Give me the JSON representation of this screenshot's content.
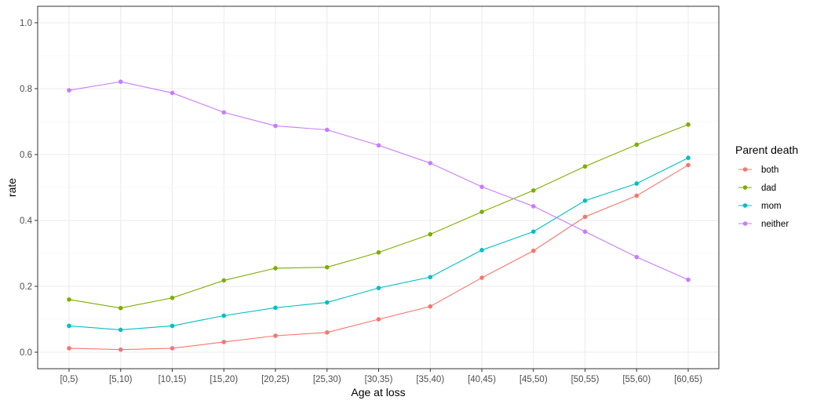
{
  "chart_data": {
    "type": "line",
    "title": "",
    "xlabel": "Age at loss",
    "ylabel": "rate",
    "ylim": [
      0,
      1.0
    ],
    "yticks": [
      0.0,
      0.2,
      0.4,
      0.6,
      0.8,
      1.0
    ],
    "ytick_labels": [
      "0.0",
      "0.2",
      "0.4",
      "0.6",
      "0.8",
      "1.0"
    ],
    "grid": true,
    "legend_title": "Parent death",
    "legend_position": "right",
    "categories": [
      "[0,5)",
      "[5,10)",
      "[10,15)",
      "[15,20)",
      "[20,25)",
      "[25,30)",
      "[30,35)",
      "[35,40)",
      "[40,45)",
      "[45,50)",
      "[50,55)",
      "[55,60)",
      "[60,65)"
    ],
    "series": [
      {
        "name": "both",
        "color": "#F8766D",
        "values": [
          0.012,
          0.008,
          0.012,
          0.031,
          0.05,
          0.06,
          0.1,
          0.139,
          0.226,
          0.308,
          0.411,
          0.475,
          0.568
        ]
      },
      {
        "name": "dad",
        "color": "#7CAE00",
        "values": [
          0.16,
          0.134,
          0.165,
          0.218,
          0.255,
          0.258,
          0.303,
          0.358,
          0.426,
          0.491,
          0.564,
          0.63,
          0.691
        ]
      },
      {
        "name": "mom",
        "color": "#00BFC4",
        "values": [
          0.08,
          0.068,
          0.08,
          0.111,
          0.135,
          0.151,
          0.195,
          0.228,
          0.31,
          0.366,
          0.46,
          0.512,
          0.59
        ]
      },
      {
        "name": "neither",
        "color": "#C77CFF",
        "values": [
          0.795,
          0.821,
          0.787,
          0.728,
          0.687,
          0.675,
          0.628,
          0.574,
          0.502,
          0.443,
          0.366,
          0.289,
          0.22
        ]
      }
    ]
  }
}
